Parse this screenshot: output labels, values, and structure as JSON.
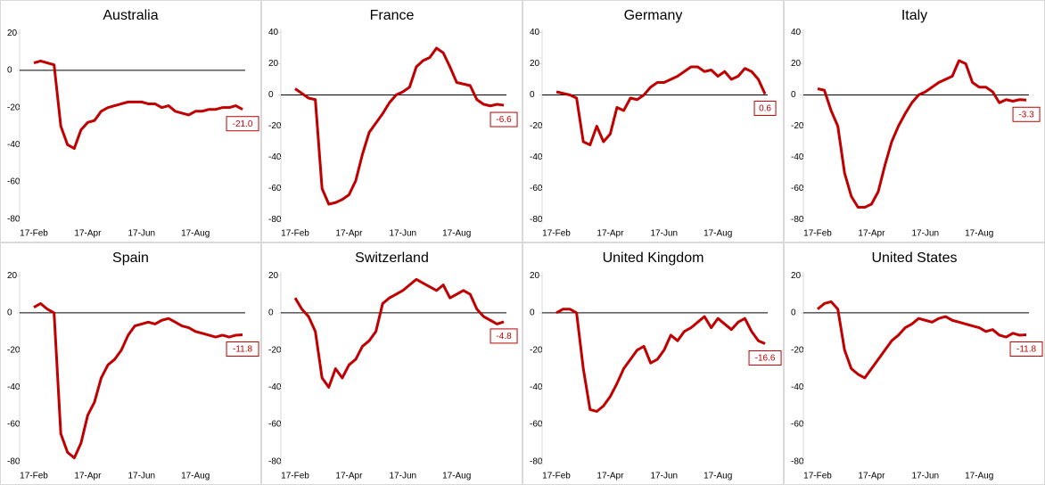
{
  "chart_data": [
    {
      "type": "line",
      "title": "Australia",
      "color": "#c00000",
      "categories": [
        "17-Feb",
        null,
        null,
        null,
        null,
        null,
        null,
        null,
        "17-Apr",
        null,
        null,
        null,
        null,
        null,
        null,
        null,
        "17-Jun",
        null,
        null,
        null,
        null,
        null,
        null,
        null,
        "17-Aug",
        null,
        null,
        null,
        null,
        null,
        null,
        null
      ],
      "values": [
        4,
        5,
        4,
        3,
        -30,
        -40,
        -42,
        -32,
        -28,
        -27,
        -22,
        -20,
        -19,
        -18,
        -17,
        -17,
        -17,
        -18,
        -18,
        -20,
        -19,
        -22,
        -23,
        -24,
        -22,
        -22,
        -21,
        -21,
        -20,
        -20,
        -19,
        -21
      ],
      "value_labels": [
        null,
        null,
        null,
        null,
        null,
        null,
        null,
        null,
        null,
        null,
        null,
        null,
        null,
        null,
        null,
        null,
        null,
        null,
        null,
        null,
        null,
        null,
        null,
        null,
        null,
        null,
        null,
        null,
        null,
        null,
        null,
        "-21.0"
      ],
      "ylim": [
        -82,
        22
      ],
      "yticks": [
        20,
        0,
        -20,
        -40,
        -60,
        -80
      ]
    },
    {
      "type": "line",
      "title": "France",
      "color": "#c00000",
      "categories": [
        "17-Feb",
        null,
        null,
        null,
        null,
        null,
        null,
        null,
        "17-Apr",
        null,
        null,
        null,
        null,
        null,
        null,
        null,
        "17-Jun",
        null,
        null,
        null,
        null,
        null,
        null,
        null,
        "17-Aug",
        null,
        null,
        null,
        null,
        null,
        null,
        null
      ],
      "values": [
        4,
        1,
        -2,
        -3,
        -60,
        -70,
        -69,
        -67,
        -64,
        -55,
        -38,
        -24,
        -18,
        -12,
        -5,
        0,
        2,
        5,
        18,
        22,
        24,
        30,
        27,
        18,
        8,
        7,
        6,
        -3,
        -6,
        -7,
        -6,
        -6.6
      ],
      "ylim": [
        -82,
        42
      ],
      "yticks": [
        40,
        20,
        0,
        -20,
        -40,
        -60,
        -80
      ]
    },
    {
      "type": "line",
      "title": "Germany",
      "color": "#c00000",
      "categories": [
        "17-Feb",
        null,
        null,
        null,
        null,
        null,
        null,
        null,
        "17-Apr",
        null,
        null,
        null,
        null,
        null,
        null,
        null,
        "17-Jun",
        null,
        null,
        null,
        null,
        null,
        null,
        null,
        "17-Aug",
        null,
        null,
        null,
        null,
        null,
        null,
        null
      ],
      "values": [
        2,
        1,
        0,
        -2,
        -30,
        -32,
        -20,
        -30,
        -25,
        -8,
        -10,
        -2,
        -3,
        0,
        5,
        8,
        8,
        10,
        12,
        15,
        18,
        18,
        15,
        16,
        12,
        15,
        10,
        12,
        17,
        15,
        10,
        0.6
      ],
      "ylim": [
        -82,
        42
      ],
      "yticks": [
        40,
        20,
        0,
        -20,
        -40,
        -60,
        -80
      ]
    },
    {
      "type": "line",
      "title": "Italy",
      "color": "#c00000",
      "categories": [
        "17-Feb",
        null,
        null,
        null,
        null,
        null,
        null,
        null,
        "17-Apr",
        null,
        null,
        null,
        null,
        null,
        null,
        null,
        "17-Jun",
        null,
        null,
        null,
        null,
        null,
        null,
        null,
        "17-Aug",
        null,
        null,
        null,
        null,
        null,
        null,
        null
      ],
      "values": [
        4,
        3,
        -10,
        -20,
        -50,
        -65,
        -72,
        -72,
        -70,
        -62,
        -45,
        -30,
        -20,
        -12,
        -5,
        0,
        2,
        5,
        8,
        10,
        12,
        22,
        20,
        8,
        5,
        5,
        2,
        -5,
        -3,
        -4,
        -3,
        -3.3
      ],
      "ylim": [
        -82,
        42
      ],
      "yticks": [
        40,
        20,
        0,
        -20,
        -40,
        -60,
        -80
      ]
    },
    {
      "type": "line",
      "title": "Spain",
      "color": "#c00000",
      "categories": [
        "17-Feb",
        null,
        null,
        null,
        null,
        null,
        null,
        null,
        "17-Apr",
        null,
        null,
        null,
        null,
        null,
        null,
        null,
        "17-Jun",
        null,
        null,
        null,
        null,
        null,
        null,
        null,
        "17-Aug",
        null,
        null,
        null,
        null,
        null,
        null,
        null
      ],
      "values": [
        3,
        5,
        2,
        0,
        -65,
        -75,
        -78,
        -70,
        -55,
        -48,
        -35,
        -28,
        -25,
        -20,
        -12,
        -7,
        -6,
        -5,
        -6,
        -4,
        -3,
        -5,
        -7,
        -8,
        -10,
        -11,
        -12,
        -13,
        -12,
        -13,
        -12,
        -11.8
      ],
      "ylim": [
        -82,
        22
      ],
      "yticks": [
        20,
        0,
        -20,
        -40,
        -60,
        -80
      ]
    },
    {
      "type": "line",
      "title": "Switzerland",
      "color": "#c00000",
      "categories": [
        "17-Feb",
        null,
        null,
        null,
        null,
        null,
        null,
        null,
        "17-Apr",
        null,
        null,
        null,
        null,
        null,
        null,
        null,
        "17-Jun",
        null,
        null,
        null,
        null,
        null,
        null,
        null,
        "17-Aug",
        null,
        null,
        null,
        null,
        null,
        null,
        null
      ],
      "values": [
        8,
        2,
        -2,
        -10,
        -35,
        -40,
        -30,
        -35,
        -28,
        -25,
        -18,
        -15,
        -10,
        5,
        8,
        10,
        12,
        15,
        18,
        16,
        14,
        12,
        15,
        8,
        10,
        12,
        10,
        2,
        -2,
        -4,
        -6,
        -4.8
      ],
      "ylim": [
        -82,
        22
      ],
      "yticks": [
        20,
        0,
        -20,
        -40,
        -60,
        -80
      ]
    },
    {
      "type": "line",
      "title": "United Kingdom",
      "color": "#c00000",
      "categories": [
        "17-Feb",
        null,
        null,
        null,
        null,
        null,
        null,
        null,
        "17-Apr",
        null,
        null,
        null,
        null,
        null,
        null,
        null,
        "17-Jun",
        null,
        null,
        null,
        null,
        null,
        null,
        null,
        "17-Aug",
        null,
        null,
        null,
        null,
        null,
        null,
        null
      ],
      "values": [
        0,
        2,
        2,
        0,
        -30,
        -52,
        -53,
        -50,
        -45,
        -38,
        -30,
        -25,
        -20,
        -18,
        -27,
        -25,
        -20,
        -12,
        -15,
        -10,
        -8,
        -5,
        -2,
        -8,
        -3,
        -6,
        -9,
        -5,
        -3,
        -10,
        -15,
        -16.6
      ],
      "ylim": [
        -82,
        22
      ],
      "yticks": [
        20,
        0,
        -20,
        -40,
        -60,
        -80
      ]
    },
    {
      "type": "line",
      "title": "United States",
      "color": "#c00000",
      "categories": [
        "17-Feb",
        null,
        null,
        null,
        null,
        null,
        null,
        null,
        "17-Apr",
        null,
        null,
        null,
        null,
        null,
        null,
        null,
        "17-Jun",
        null,
        null,
        null,
        null,
        null,
        null,
        null,
        "17-Aug",
        null,
        null,
        null,
        null,
        null,
        null,
        null
      ],
      "values": [
        2,
        5,
        6,
        2,
        -20,
        -30,
        -33,
        -35,
        -30,
        -25,
        -20,
        -15,
        -12,
        -8,
        -6,
        -3,
        -4,
        -5,
        -3,
        -2,
        -4,
        -5,
        -6,
        -7,
        -8,
        -10,
        -9,
        -12,
        -13,
        -11,
        -12,
        -11.8
      ],
      "ylim": [
        -82,
        22
      ],
      "yticks": [
        20,
        0,
        -20,
        -40,
        -60,
        -80
      ]
    }
  ]
}
